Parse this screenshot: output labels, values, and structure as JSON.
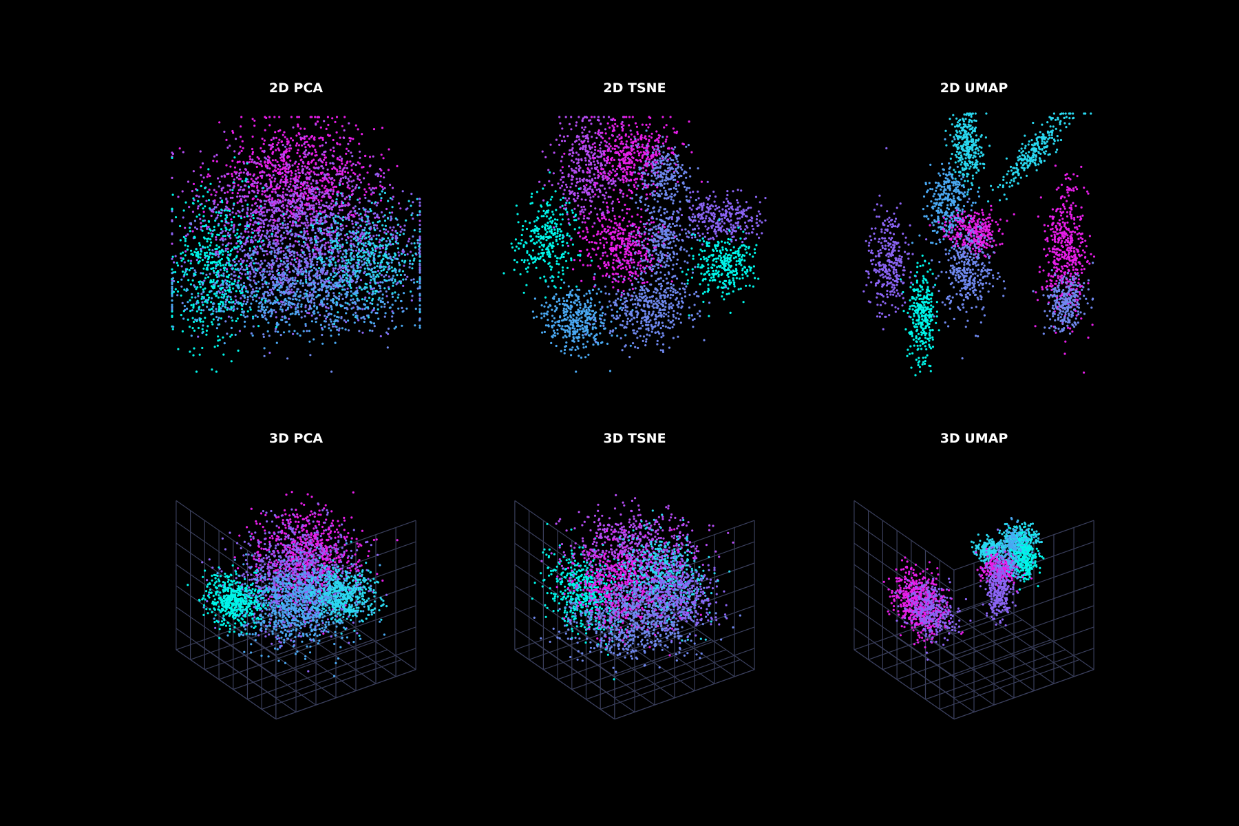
{
  "figure": {
    "background": "#000000",
    "grid_color": "#3a3f5c",
    "palette": [
      "#00f5e9",
      "#2ad8f0",
      "#4aa8f2",
      "#6f88ee",
      "#8b64f4",
      "#b44cf2",
      "#e61ee8"
    ]
  },
  "chart_data": [
    {
      "type": "scatter",
      "title": "2D PCA",
      "dims": 2,
      "axes_visible": false,
      "grid": false,
      "point_count_hint": 4500,
      "clusters": [
        {
          "center": [
            0.0,
            0.55
          ],
          "spread": [
            0.32,
            0.22
          ],
          "color_index": 6,
          "n": 700
        },
        {
          "center": [
            0.0,
            0.3
          ],
          "spread": [
            0.4,
            0.25
          ],
          "color_index": 5,
          "n": 800
        },
        {
          "center": [
            0.05,
            -0.05
          ],
          "spread": [
            0.45,
            0.25
          ],
          "color_index": 4,
          "n": 900
        },
        {
          "center": [
            0.1,
            -0.25
          ],
          "spread": [
            0.45,
            0.22
          ],
          "color_index": 3,
          "n": 700
        },
        {
          "center": [
            -0.65,
            -0.2
          ],
          "spread": [
            0.18,
            0.3
          ],
          "color_index": 0,
          "n": 500
        },
        {
          "center": [
            0.55,
            -0.1
          ],
          "spread": [
            0.25,
            0.2
          ],
          "color_index": 1,
          "n": 450
        },
        {
          "center": [
            0.0,
            -0.45
          ],
          "spread": [
            0.5,
            0.15
          ],
          "color_index": 2,
          "n": 450
        }
      ]
    },
    {
      "type": "scatter",
      "title": "2D TSNE",
      "dims": 2,
      "axes_visible": false,
      "grid": false,
      "clusters": [
        {
          "center": [
            -0.35,
            0.6
          ],
          "spread": [
            0.13,
            0.22
          ],
          "color_index": 5,
          "n": 420
        },
        {
          "center": [
            0.0,
            0.7
          ],
          "spread": [
            0.16,
            0.15
          ],
          "color_index": 6,
          "n": 380
        },
        {
          "center": [
            0.22,
            0.55
          ],
          "spread": [
            0.1,
            0.12
          ],
          "color_index": 3,
          "n": 220
        },
        {
          "center": [
            0.65,
            0.2
          ],
          "spread": [
            0.16,
            0.1
          ],
          "color_index": 4,
          "n": 300
        },
        {
          "center": [
            -0.68,
            0.02
          ],
          "spread": [
            0.12,
            0.16
          ],
          "color_index": 0,
          "n": 300
        },
        {
          "center": [
            -0.1,
            0.0
          ],
          "spread": [
            0.15,
            0.15
          ],
          "color_index": 6,
          "n": 400
        },
        {
          "center": [
            0.2,
            0.05
          ],
          "spread": [
            0.1,
            0.18
          ],
          "color_index": 3,
          "n": 300
        },
        {
          "center": [
            0.68,
            -0.15
          ],
          "spread": [
            0.12,
            0.12
          ],
          "color_index": 0,
          "n": 300
        },
        {
          "center": [
            -0.45,
            -0.6
          ],
          "spread": [
            0.13,
            0.13
          ],
          "color_index": 2,
          "n": 380
        },
        {
          "center": [
            0.1,
            -0.5
          ],
          "spread": [
            0.17,
            0.14
          ],
          "color_index": 3,
          "n": 420
        }
      ]
    },
    {
      "type": "scatter",
      "title": "2D UMAP",
      "dims": 2,
      "axes_visible": false,
      "grid": false,
      "clusters": [
        {
          "center": [
            -0.05,
            0.75
          ],
          "spread": [
            0.06,
            0.14
          ],
          "color_index": 1,
          "n": 300
        },
        {
          "center": [
            0.45,
            0.7
          ],
          "spread": [
            0.05,
            0.22
          ],
          "color_index": 1,
          "n": 250,
          "rotate": -0.7
        },
        {
          "center": [
            -0.2,
            0.3
          ],
          "spread": [
            0.08,
            0.15
          ],
          "color_index": 2,
          "n": 300
        },
        {
          "center": [
            0.0,
            0.1
          ],
          "spread": [
            0.1,
            0.08
          ],
          "color_index": 6,
          "n": 300
        },
        {
          "center": [
            -0.05,
            -0.2
          ],
          "spread": [
            0.1,
            0.18
          ],
          "color_index": 3,
          "n": 350
        },
        {
          "center": [
            -0.65,
            -0.15
          ],
          "spread": [
            0.08,
            0.2
          ],
          "color_index": 4,
          "n": 300
        },
        {
          "center": [
            -0.4,
            -0.55
          ],
          "spread": [
            0.05,
            0.18
          ],
          "color_index": 0,
          "n": 300
        },
        {
          "center": [
            0.7,
            -0.05
          ],
          "spread": [
            0.08,
            0.25
          ],
          "color_index": 6,
          "n": 450
        },
        {
          "center": [
            0.7,
            -0.45
          ],
          "spread": [
            0.08,
            0.12
          ],
          "color_index": 3,
          "n": 250
        }
      ]
    },
    {
      "type": "scatter",
      "title": "3D PCA",
      "dims": 3,
      "axes_visible": false,
      "grid": true,
      "clusters": [
        {
          "center": [
            0.1,
            0.1,
            0.4
          ],
          "spread": [
            0.3,
            0.3,
            0.25
          ],
          "color_index": 6,
          "n": 700
        },
        {
          "center": [
            0.0,
            0.0,
            0.1
          ],
          "spread": [
            0.35,
            0.35,
            0.3
          ],
          "color_index": 4,
          "n": 900
        },
        {
          "center": [
            0.0,
            0.0,
            -0.25
          ],
          "spread": [
            0.35,
            0.35,
            0.2
          ],
          "color_index": 2,
          "n": 800
        },
        {
          "center": [
            -0.75,
            -0.2,
            -0.05
          ],
          "spread": [
            0.15,
            0.2,
            0.12
          ],
          "color_index": 0,
          "n": 450
        },
        {
          "center": [
            0.6,
            0.1,
            -0.3
          ],
          "spread": [
            0.2,
            0.2,
            0.15
          ],
          "color_index": 1,
          "n": 450
        }
      ]
    },
    {
      "type": "scatter",
      "title": "3D TSNE",
      "dims": 3,
      "axes_visible": false,
      "grid": true,
      "clusters": [
        {
          "center": [
            -0.7,
            0.0,
            0.1
          ],
          "spread": [
            0.15,
            0.3,
            0.25
          ],
          "color_index": 0,
          "n": 500
        },
        {
          "center": [
            0.0,
            0.0,
            0.5
          ],
          "spread": [
            0.35,
            0.35,
            0.15
          ],
          "color_index": 5,
          "n": 600
        },
        {
          "center": [
            -0.1,
            0.0,
            0.0
          ],
          "spread": [
            0.3,
            0.3,
            0.25
          ],
          "color_index": 6,
          "n": 600
        },
        {
          "center": [
            0.4,
            0.0,
            0.0
          ],
          "spread": [
            0.2,
            0.3,
            0.25
          ],
          "color_index": 1,
          "n": 450
        },
        {
          "center": [
            0.0,
            0.0,
            -0.45
          ],
          "spread": [
            0.4,
            0.35,
            0.15
          ],
          "color_index": 3,
          "n": 700
        },
        {
          "center": [
            0.6,
            0.0,
            -0.3
          ],
          "spread": [
            0.2,
            0.3,
            0.2
          ],
          "color_index": 4,
          "n": 400
        }
      ]
    },
    {
      "type": "scatter",
      "title": "3D UMAP",
      "dims": 3,
      "axes_visible": false,
      "grid": true,
      "clusters": [
        {
          "center": [
            -0.75,
            -0.05,
            0.0
          ],
          "spread": [
            0.12,
            0.2,
            0.2
          ],
          "color_index": 6,
          "n": 550
        },
        {
          "center": [
            -0.65,
            0.05,
            -0.1
          ],
          "spread": [
            0.12,
            0.2,
            0.15
          ],
          "color_index": 4,
          "n": 300
        },
        {
          "center": [
            0.0,
            0.3,
            0.6
          ],
          "spread": [
            0.08,
            0.08,
            0.06
          ],
          "color_index": 1,
          "n": 200
        },
        {
          "center": [
            0.45,
            0.25,
            0.55
          ],
          "spread": [
            0.12,
            0.08,
            0.08
          ],
          "color_index": 1,
          "n": 300
        },
        {
          "center": [
            0.4,
            0.0,
            0.1
          ],
          "spread": [
            0.12,
            0.1,
            0.08
          ],
          "color_index": 6,
          "n": 250
        },
        {
          "center": [
            0.6,
            0.0,
            0.25
          ],
          "spread": [
            0.08,
            0.1,
            0.15
          ],
          "color_index": 2,
          "n": 250
        },
        {
          "center": [
            0.85,
            -0.15,
            0.0
          ],
          "spread": [
            0.05,
            0.08,
            0.15
          ],
          "color_index": 0,
          "n": 200
        },
        {
          "center": [
            0.6,
            -0.35,
            -0.4
          ],
          "spread": [
            0.06,
            0.1,
            0.2
          ],
          "color_index": 4,
          "n": 300
        }
      ]
    }
  ]
}
